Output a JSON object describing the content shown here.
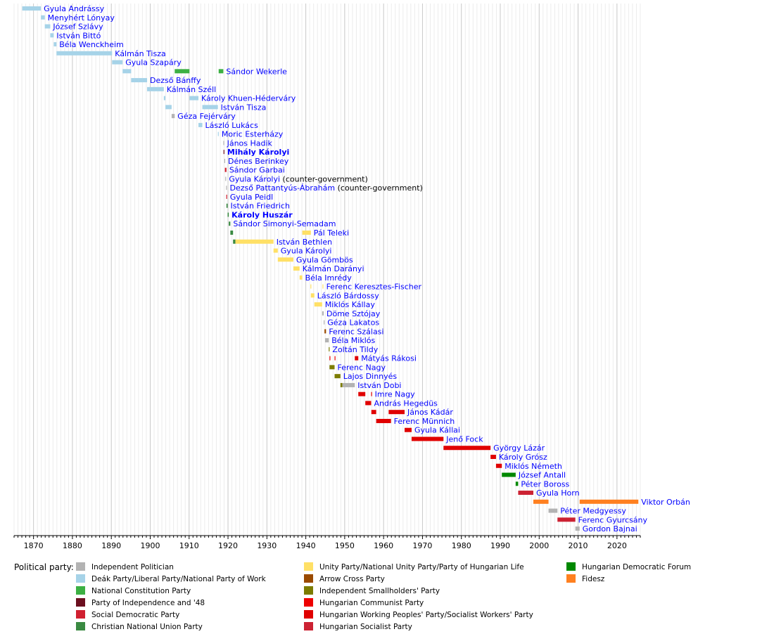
{
  "chart_data": {
    "type": "timeline",
    "title": "",
    "xlabel": "",
    "ylabel": "",
    "x_range": [
      1865,
      2026
    ],
    "x_ticks": [
      1870,
      1880,
      1890,
      1900,
      1910,
      1920,
      1930,
      1940,
      1950,
      1960,
      1970,
      1980,
      1990,
      2000,
      2010,
      2020
    ],
    "grid": "vertical, every year (major lines every 10 years)",
    "legend_position": "bottom",
    "legend_title": "Political party:",
    "parties": [
      {
        "key": "ind",
        "name": "Independent Politician",
        "color": "#b3b3b3"
      },
      {
        "key": "deak",
        "name": "Deák Party/Liberal Party/National Party of Work",
        "color": "#a6d3e8"
      },
      {
        "key": "nat",
        "name": "National Constitution Party",
        "color": "#3cb043"
      },
      {
        "key": "p48",
        "name": "Party of Independence and '48",
        "color": "#6b0f1f"
      },
      {
        "key": "sd",
        "name": "Social Democratic Party",
        "color": "#d02030"
      },
      {
        "key": "cnu",
        "name": "Christian National Union Party",
        "color": "#3a8a42"
      },
      {
        "key": "unity",
        "name": "Unity Party/National Unity Party/Party of Hungarian Life",
        "color": "#ffe066"
      },
      {
        "key": "arrow",
        "name": "Arrow Cross Party",
        "color": "#9a4a00"
      },
      {
        "key": "fkgp",
        "name": "Independent Smallholders' Party",
        "color": "#7c7c00"
      },
      {
        "key": "hcp",
        "name": "Hungarian Communist Party",
        "color": "#ee0000"
      },
      {
        "key": "mdp",
        "name": "Hungarian Working Peoples' Party/Socialist Workers' Party",
        "color": "#e00000"
      },
      {
        "key": "mszp",
        "name": "Hungarian Socialist Party",
        "color": "#cc2233"
      },
      {
        "key": "mdf",
        "name": "Hungarian Democratic Forum",
        "color": "#008800"
      },
      {
        "key": "fidesz",
        "name": "Fidesz",
        "color": "#ff8020"
      }
    ],
    "rows": [
      {
        "name": "Gyula Andrássy",
        "terms": [
          {
            "start": 1867.1,
            "end": 1871.9,
            "party": "deak"
          }
        ]
      },
      {
        "name": "Menyhért Lónyay",
        "terms": [
          {
            "start": 1871.9,
            "end": 1872.9,
            "party": "deak"
          }
        ]
      },
      {
        "name": "József Szlávy",
        "terms": [
          {
            "start": 1872.9,
            "end": 1874.3,
            "party": "deak"
          }
        ]
      },
      {
        "name": "István Bittó",
        "terms": [
          {
            "start": 1874.3,
            "end": 1875.2,
            "party": "deak"
          }
        ]
      },
      {
        "name": "Béla Wenckheim",
        "terms": [
          {
            "start": 1875.2,
            "end": 1875.9,
            "party": "deak"
          }
        ]
      },
      {
        "name": "Kálmán Tisza",
        "terms": [
          {
            "start": 1875.9,
            "end": 1890.2,
            "party": "deak"
          }
        ]
      },
      {
        "name": "Gyula Szapáry",
        "terms": [
          {
            "start": 1890.2,
            "end": 1892.9,
            "party": "deak"
          }
        ]
      },
      {
        "name": "Sándor Wekerle",
        "terms": [
          {
            "start": 1892.9,
            "end": 1895.1,
            "party": "deak"
          },
          {
            "start": 1906.3,
            "end": 1910.1,
            "party": "nat"
          },
          {
            "start": 1917.6,
            "end": 1918.8,
            "party": "nat"
          }
        ]
      },
      {
        "name": "Dezső Bánffy",
        "terms": [
          {
            "start": 1895.1,
            "end": 1899.2,
            "party": "deak"
          }
        ]
      },
      {
        "name": "Kálmán Széll",
        "terms": [
          {
            "start": 1899.2,
            "end": 1903.5,
            "party": "deak"
          }
        ]
      },
      {
        "name": "Károly Khuen-Héderváry",
        "terms": [
          {
            "start": 1903.5,
            "end": 1903.9,
            "party": "deak"
          },
          {
            "start": 1910.1,
            "end": 1912.4,
            "party": "deak"
          }
        ]
      },
      {
        "name": "István Tisza",
        "terms": [
          {
            "start": 1903.9,
            "end": 1905.5,
            "party": "deak"
          },
          {
            "start": 1913.4,
            "end": 1917.4,
            "party": "deak"
          }
        ]
      },
      {
        "name": "Géza Fejérváry",
        "terms": [
          {
            "start": 1905.5,
            "end": 1906.3,
            "party": "ind"
          }
        ]
      },
      {
        "name": "László Lukács",
        "terms": [
          {
            "start": 1912.4,
            "end": 1913.4,
            "party": "deak"
          }
        ]
      },
      {
        "name": "Moric Esterházy",
        "terms": [
          {
            "start": 1917.4,
            "end": 1917.6,
            "party": "deak"
          }
        ]
      },
      {
        "name": "János Hadik",
        "terms": [
          {
            "start": 1918.8,
            "end": 1918.9,
            "party": "ind"
          }
        ]
      },
      {
        "name": "Mihály Károlyi",
        "bold": true,
        "terms": [
          {
            "start": 1918.85,
            "end": 1919.05,
            "party": "p48"
          }
        ]
      },
      {
        "name": "Dénes Berinkey",
        "terms": [
          {
            "start": 1919.05,
            "end": 1919.2,
            "party": "ind"
          }
        ]
      },
      {
        "name": "Sándor Garbai",
        "terms": [
          {
            "start": 1919.2,
            "end": 1919.6,
            "party": "sd"
          }
        ]
      },
      {
        "name": "Gyula Károlyi",
        "note": "(counter-government)",
        "terms": [
          {
            "start": 1919.3,
            "end": 1919.5,
            "party": "ind"
          }
        ]
      },
      {
        "name": "Dezső Pattantyús-Ábrahám",
        "note": "(counter-government)",
        "terms": [
          {
            "start": 1919.5,
            "end": 1919.6,
            "party": "ind"
          }
        ]
      },
      {
        "name": "Gyula Peidl",
        "terms": [
          {
            "start": 1919.55,
            "end": 1919.65,
            "party": "sd"
          }
        ]
      },
      {
        "name": "István Friedrich",
        "terms": [
          {
            "start": 1919.6,
            "end": 1919.9,
            "party": "cnu"
          }
        ]
      },
      {
        "name": "Károly Huszár",
        "bold": true,
        "terms": [
          {
            "start": 1919.9,
            "end": 1920.2,
            "party": "cnu"
          }
        ]
      },
      {
        "name": "Sándor Simonyi-Semadam",
        "terms": [
          {
            "start": 1920.2,
            "end": 1920.6,
            "party": "cnu"
          }
        ]
      },
      {
        "name": "Pál Teleki",
        "terms": [
          {
            "start": 1920.6,
            "end": 1921.3,
            "party": "cnu"
          },
          {
            "start": 1939.1,
            "end": 1941.3,
            "party": "unity"
          }
        ]
      },
      {
        "name": "István Bethlen",
        "terms": [
          {
            "start": 1921.3,
            "end": 1921.9,
            "party": "cnu"
          },
          {
            "start": 1921.9,
            "end": 1931.7,
            "party": "unity"
          }
        ]
      },
      {
        "name": "Gyula Károlyi",
        "terms": [
          {
            "start": 1931.7,
            "end": 1932.8,
            "party": "unity"
          }
        ]
      },
      {
        "name": "Gyula Gömbös",
        "terms": [
          {
            "start": 1932.8,
            "end": 1936.8,
            "party": "unity"
          }
        ]
      },
      {
        "name": "Kálmán Darányi",
        "terms": [
          {
            "start": 1936.8,
            "end": 1938.4,
            "party": "unity"
          }
        ]
      },
      {
        "name": "Béla Imrédy",
        "terms": [
          {
            "start": 1938.4,
            "end": 1939.1,
            "party": "unity"
          }
        ]
      },
      {
        "name": "Ferenc Keresztes-Fischer",
        "terms": [
          {
            "start": 1941.2,
            "end": 1941.3,
            "party": "unity"
          },
          {
            "start": 1944.3,
            "end": 1944.4,
            "party": "unity"
          }
        ]
      },
      {
        "name": "László Bárdossy",
        "terms": [
          {
            "start": 1941.3,
            "end": 1942.2,
            "party": "unity"
          }
        ]
      },
      {
        "name": "Miklós Kállay",
        "terms": [
          {
            "start": 1942.2,
            "end": 1944.2,
            "party": "unity"
          }
        ]
      },
      {
        "name": "Döme Sztójay",
        "terms": [
          {
            "start": 1944.2,
            "end": 1944.6,
            "party": "ind"
          }
        ]
      },
      {
        "name": "Géza Lakatos",
        "terms": [
          {
            "start": 1944.6,
            "end": 1944.8,
            "party": "ind"
          }
        ]
      },
      {
        "name": "Ferenc Szálasi",
        "terms": [
          {
            "start": 1944.8,
            "end": 1945.2,
            "party": "arrow"
          }
        ]
      },
      {
        "name": "Béla Miklós",
        "terms": [
          {
            "start": 1944.95,
            "end": 1945.9,
            "party": "ind"
          }
        ]
      },
      {
        "name": "Zoltán Tildy",
        "terms": [
          {
            "start": 1945.9,
            "end": 1946.1,
            "party": "fkgp"
          }
        ]
      },
      {
        "name": "Mátyás Rákosi",
        "terms": [
          {
            "start": 1946.1,
            "end": 1946.2,
            "party": "hcp"
          },
          {
            "start": 1947.4,
            "end": 1947.5,
            "party": "hcp"
          },
          {
            "start": 1952.6,
            "end": 1953.5,
            "party": "mdp"
          }
        ]
      },
      {
        "name": "Ferenc Nagy",
        "terms": [
          {
            "start": 1946.1,
            "end": 1947.4,
            "party": "fkgp"
          }
        ]
      },
      {
        "name": "Lajos Dinnyés",
        "terms": [
          {
            "start": 1947.4,
            "end": 1948.9,
            "party": "fkgp"
          }
        ]
      },
      {
        "name": "István Dobi",
        "terms": [
          {
            "start": 1948.9,
            "end": 1949.4,
            "party": "fkgp"
          },
          {
            "start": 1949.4,
            "end": 1952.6,
            "party": "ind"
          }
        ]
      },
      {
        "name": "Imre Nagy",
        "terms": [
          {
            "start": 1953.5,
            "end": 1955.3,
            "party": "mdp"
          },
          {
            "start": 1956.8,
            "end": 1956.9,
            "party": "mdp"
          }
        ]
      },
      {
        "name": "András Hegedüs",
        "terms": [
          {
            "start": 1955.3,
            "end": 1956.8,
            "party": "mdp"
          }
        ]
      },
      {
        "name": "János Kádár",
        "terms": [
          {
            "start": 1956.85,
            "end": 1958.1,
            "party": "mdp"
          },
          {
            "start": 1961.3,
            "end": 1965.4,
            "party": "mdp"
          }
        ]
      },
      {
        "name": "Ferenc Münnich",
        "terms": [
          {
            "start": 1958.1,
            "end": 1961.9,
            "party": "mdp"
          }
        ]
      },
      {
        "name": "Gyula Kállai",
        "terms": [
          {
            "start": 1965.4,
            "end": 1967.2,
            "party": "mdp"
          }
        ]
      },
      {
        "name": "Jenő Fock",
        "terms": [
          {
            "start": 1967.2,
            "end": 1975.4,
            "party": "mdp"
          }
        ]
      },
      {
        "name": "György Lázár",
        "terms": [
          {
            "start": 1975.4,
            "end": 1987.5,
            "party": "mdp"
          }
        ]
      },
      {
        "name": "Károly Grósz",
        "terms": [
          {
            "start": 1987.5,
            "end": 1988.9,
            "party": "mdp"
          }
        ]
      },
      {
        "name": "Miklós Németh",
        "terms": [
          {
            "start": 1988.9,
            "end": 1990.4,
            "party": "mdp"
          }
        ]
      },
      {
        "name": "József Antall",
        "terms": [
          {
            "start": 1990.4,
            "end": 1993.95,
            "party": "mdf"
          }
        ]
      },
      {
        "name": "Péter Boross",
        "terms": [
          {
            "start": 1993.95,
            "end": 1994.6,
            "party": "mdf"
          }
        ]
      },
      {
        "name": "Gyula Horn",
        "terms": [
          {
            "start": 1994.6,
            "end": 1998.5,
            "party": "mszp"
          }
        ]
      },
      {
        "name": "Viktor Orbán",
        "terms": [
          {
            "start": 1998.5,
            "end": 2002.4,
            "party": "fidesz"
          },
          {
            "start": 2010.4,
            "end": 2025.5,
            "party": "fidesz"
          }
        ]
      },
      {
        "name": "Péter Medgyessy",
        "terms": [
          {
            "start": 2002.4,
            "end": 2004.7,
            "party": "ind"
          }
        ]
      },
      {
        "name": "Ferenc Gyurcsány",
        "terms": [
          {
            "start": 2004.7,
            "end": 2009.3,
            "party": "mszp"
          }
        ]
      },
      {
        "name": "Gordon Bajnai",
        "terms": [
          {
            "start": 2009.3,
            "end": 2010.4,
            "party": "ind"
          }
        ]
      }
    ]
  }
}
